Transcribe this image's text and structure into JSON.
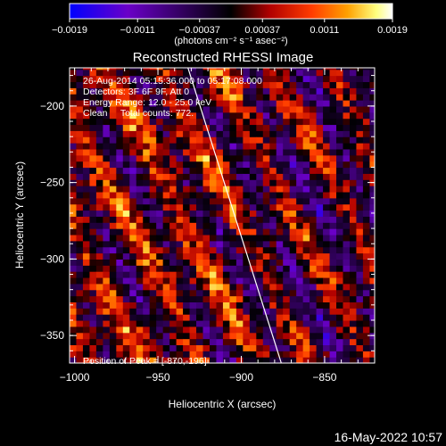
{
  "chart_data": {
    "type": "heatmap",
    "title": "Reconstructed RHESSI Image",
    "xlabel": "Heliocentric X (arcsec)",
    "ylabel": "Heliocentric Y (arcsec)",
    "xlim": [
      -1003,
      -820
    ],
    "ylim": [
      -368,
      -175
    ],
    "xticks": [
      {
        "value": -1000,
        "label": "−1000"
      },
      {
        "value": -950,
        "label": "−950"
      },
      {
        "value": -900,
        "label": "−900"
      },
      {
        "value": -850,
        "label": "−850"
      }
    ],
    "yticks": [
      {
        "value": -200,
        "label": "−200"
      },
      {
        "value": -250,
        "label": "−250"
      },
      {
        "value": -300,
        "label": "−300"
      },
      {
        "value": -350,
        "label": "−350"
      }
    ],
    "colorbar": {
      "range": [
        -0.0019,
        0.0019
      ],
      "ticks": [
        {
          "value": -0.0019,
          "label": "−0.0019"
        },
        {
          "value": -0.0011,
          "label": "−0.0011"
        },
        {
          "value": -0.00037,
          "label": "−0.00037"
        },
        {
          "value": 0.00037,
          "label": "0.00037"
        },
        {
          "value": 0.0011,
          "label": "0.0011"
        },
        {
          "value": 0.0019,
          "label": "0.0019"
        }
      ],
      "unit_label": "(photons cm⁻² s⁻¹ asec⁻²)",
      "colors": [
        "#0000ff",
        "#6a00c8",
        "#000000",
        "#b00000",
        "#ff3c00",
        "#ffa000",
        "#ffff80",
        "#ffffff"
      ]
    },
    "info_lines": [
      "26-Aug-2014 05:15:36.000 to 05:17:08.000",
      "Detectors: 3F 6F 9F, Att 0",
      "Energy Range: 12.0 - 25.0 keV",
      "Clean     Total counts: 772."
    ],
    "peak_label": "Position of Peak = [-870,-196]",
    "limb_line": {
      "start": [
        -932,
        -175
      ],
      "end": [
        -876,
        -368
      ]
    },
    "grid": false,
    "pixel_size_arcsec": 4
  },
  "footer_timestamp": "16-May-2022 10:57"
}
